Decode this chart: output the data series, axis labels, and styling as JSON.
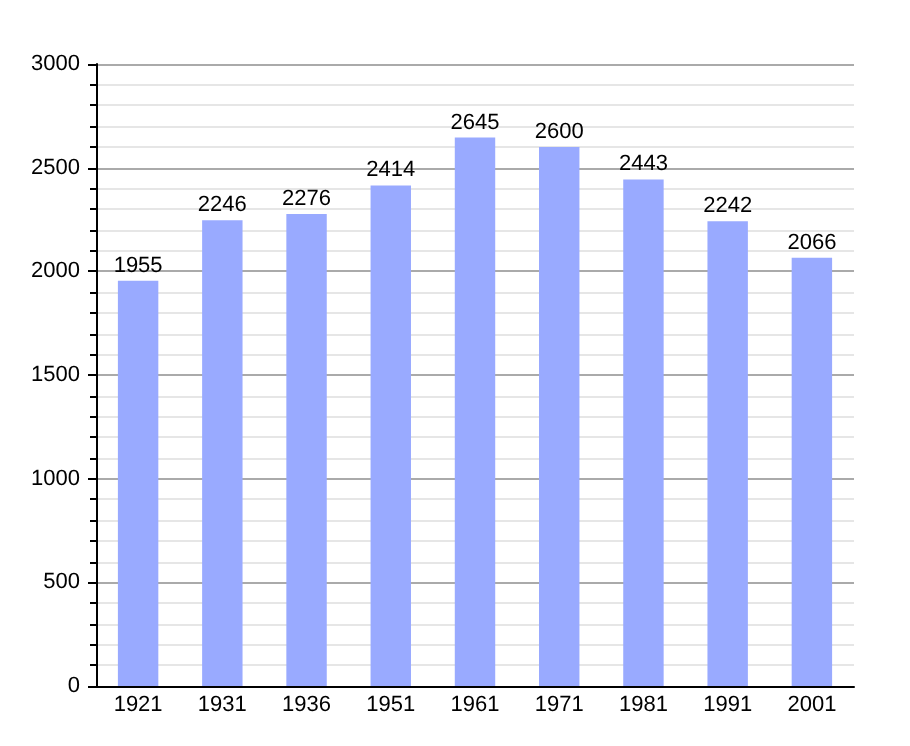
{
  "chart_data": {
    "type": "bar",
    "categories": [
      "1921",
      "1931",
      "1936",
      "1951",
      "1961",
      "1971",
      "1981",
      "1991",
      "2001"
    ],
    "values": [
      1955,
      2246,
      2276,
      2414,
      2645,
      2600,
      2443,
      2242,
      2066
    ],
    "color": "#99aaff",
    "ylim": [
      0,
      3000
    ],
    "yticks": [
      0,
      500,
      1000,
      1500,
      2000,
      2500,
      3000
    ],
    "grid": "y",
    "data_labels": true
  }
}
